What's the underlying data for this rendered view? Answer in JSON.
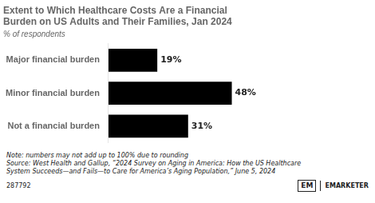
{
  "chart_data": {
    "type": "bar",
    "orientation": "horizontal",
    "title": [
      "Extent to Which Healthcare Costs Are a Financial",
      "Burden on US Adults and Their Families, Jan 2024"
    ],
    "subtitle": "% of respondents",
    "categories": [
      "Major financial burden",
      "Minor financial burden",
      "Not a financial burden"
    ],
    "values": [
      19,
      48,
      31
    ],
    "value_labels": [
      "19%",
      "48%",
      "31%"
    ],
    "color": "#000000",
    "xlim": [
      0,
      100
    ],
    "grid": false,
    "tick_labels": "y",
    "data_labels": true,
    "notes": [
      "Note: numbers may not add up to 100% due to rounding",
      "Source: West Health and Gallup, “2024 Survey on Aging in America: How the US Healthcare",
      "System Succeeds—and Fails—to Care for America’s Aging Population,” June 5, 2024"
    ],
    "footer": "287792",
    "brand": [
      "EM",
      "EMARKETER"
    ]
  }
}
